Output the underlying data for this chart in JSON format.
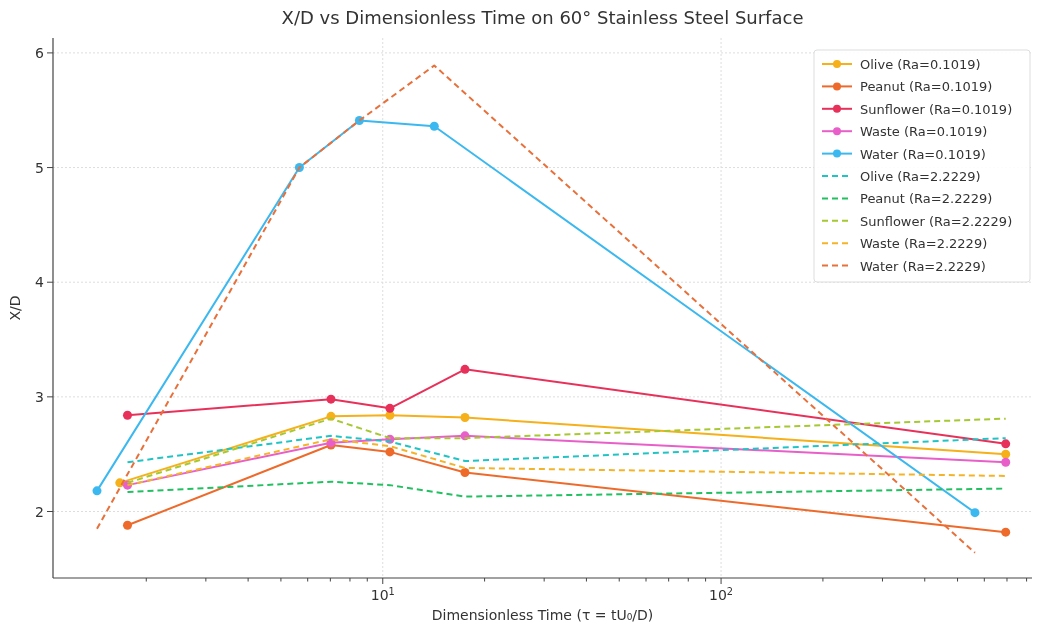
{
  "chart_data": {
    "type": "line",
    "title": "X/D vs Dimensionless Time on 60° Stainless Steel Surface",
    "xlabel": "Dimensionless Time (τ = tU₀/D)",
    "ylabel": "X/D",
    "log": "x",
    "xlim": [
      1.06,
      830
    ],
    "ylim": [
      1.42,
      6.13
    ],
    "xticks": [
      {
        "value": 2,
        "label": null
      },
      {
        "value": 3,
        "label": null
      },
      {
        "value": 4,
        "label": null
      },
      {
        "value": 5,
        "label": null
      },
      {
        "value": 6,
        "label": null
      },
      {
        "value": 7,
        "label": null
      },
      {
        "value": 8,
        "label": null
      },
      {
        "value": 9,
        "label": null
      },
      {
        "value": 10,
        "label": "10$^{1}$"
      },
      {
        "value": 20,
        "label": null
      },
      {
        "value": 30,
        "label": null
      },
      {
        "value": 40,
        "label": null
      },
      {
        "value": 50,
        "label": null
      },
      {
        "value": 60,
        "label": null
      },
      {
        "value": 70,
        "label": null
      },
      {
        "value": 80,
        "label": null
      },
      {
        "value": 90,
        "label": null
      },
      {
        "value": 100,
        "label": "10$^{2}$"
      },
      {
        "value": 200,
        "label": null
      },
      {
        "value": 300,
        "label": null
      },
      {
        "value": 400,
        "label": null
      },
      {
        "value": 500,
        "label": null
      },
      {
        "value": 600,
        "label": null
      },
      {
        "value": 700,
        "label": null
      },
      {
        "value": 800,
        "label": null
      }
    ],
    "yticks": [
      2,
      3,
      4,
      5,
      6
    ],
    "grid": true,
    "legend": "top right",
    "series": [
      {
        "name": "Olive (Ra=0.1019)",
        "color": "#f5b01a",
        "marker": "circle",
        "line_style": "solid",
        "x": [
          1.67,
          7.03,
          10.5,
          17.5,
          694
        ],
        "values": [
          2.25,
          2.83,
          2.84,
          2.82,
          2.5
        ]
      },
      {
        "name": "Peanut (Ra=0.1019)",
        "color": "#ee6a2b",
        "marker": "circle",
        "line_style": "solid",
        "x": [
          1.76,
          7.03,
          10.5,
          17.5,
          694
        ],
        "values": [
          1.88,
          2.58,
          2.52,
          2.34,
          1.82
        ]
      },
      {
        "name": "Sunflower (Ra=0.1019)",
        "color": "#e8315a",
        "marker": "circle",
        "line_style": "solid",
        "x": [
          1.76,
          7.03,
          10.5,
          17.5,
          694
        ],
        "values": [
          2.84,
          2.98,
          2.9,
          3.24,
          2.59
        ]
      },
      {
        "name": "Waste (Ra=0.1019)",
        "color": "#e85fc9",
        "marker": "circle",
        "line_style": "solid",
        "x": [
          1.76,
          7.03,
          10.5,
          17.5,
          694
        ],
        "values": [
          2.23,
          2.6,
          2.63,
          2.66,
          2.43
        ]
      },
      {
        "name": "Water (Ra=0.1019)",
        "color": "#3bb8ef",
        "marker": "circle",
        "line_style": "solid",
        "x": [
          1.43,
          5.67,
          8.53,
          14.2,
          563
        ],
        "values": [
          2.18,
          5.0,
          5.41,
          5.36,
          1.99
        ]
      },
      {
        "name": "Olive (Ra=2.2229)",
        "color": "#20c4c4",
        "marker": "none",
        "line_style": "dashed",
        "x": [
          1.76,
          7.03,
          10.5,
          17.5,
          694
        ],
        "values": [
          2.43,
          2.66,
          2.61,
          2.44,
          2.64
        ]
      },
      {
        "name": "Peanut (Ra=2.2229)",
        "color": "#22c061",
        "marker": "none",
        "line_style": "dashed",
        "x": [
          1.76,
          7.03,
          10.5,
          17.5,
          694
        ],
        "values": [
          2.17,
          2.26,
          2.23,
          2.13,
          2.2
        ]
      },
      {
        "name": "Sunflower (Ra=2.2229)",
        "color": "#a6c832",
        "marker": "none",
        "line_style": "dashed",
        "x": [
          1.76,
          7.03,
          10.5,
          17.5,
          694
        ],
        "values": [
          2.25,
          2.81,
          2.64,
          2.64,
          2.81
        ]
      },
      {
        "name": "Waste (Ra=2.2229)",
        "color": "#f5b428",
        "marker": "none",
        "line_style": "dashed",
        "x": [
          1.76,
          7.03,
          10.5,
          17.5,
          694
        ],
        "values": [
          2.23,
          2.63,
          2.57,
          2.38,
          2.31
        ]
      },
      {
        "name": "Water (Ra=2.2229)",
        "color": "#e8703a",
        "marker": "none",
        "line_style": "dashed",
        "x": [
          1.43,
          5.67,
          8.53,
          14.2,
          563
        ],
        "values": [
          1.85,
          5.0,
          5.41,
          5.89,
          1.64
        ]
      }
    ]
  }
}
